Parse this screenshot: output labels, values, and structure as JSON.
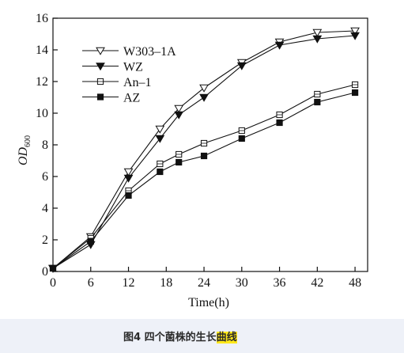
{
  "chart_data": {
    "type": "line",
    "x": [
      0,
      6,
      12,
      17,
      20,
      24,
      30,
      36,
      42,
      48
    ],
    "xticks": [
      0,
      6,
      12,
      18,
      24,
      30,
      36,
      42,
      48
    ],
    "yticks": [
      0,
      2,
      4,
      6,
      8,
      10,
      12,
      14,
      16
    ],
    "xlim": [
      0,
      50
    ],
    "ylim": [
      0,
      16
    ],
    "xlabel": "Time(h)",
    "ylabel_main": "OD",
    "ylabel_sub": "600",
    "grid": false,
    "legend_position": "top-left",
    "series": [
      {
        "name": "W303–1A",
        "marker": "triangle-down-open",
        "values": [
          0.2,
          2.2,
          6.3,
          9.0,
          10.3,
          11.6,
          13.2,
          14.5,
          15.1,
          15.2
        ]
      },
      {
        "name": "WZ",
        "marker": "triangle-down-filled",
        "values": [
          0.2,
          1.7,
          5.9,
          8.4,
          9.9,
          11.0,
          13.0,
          14.3,
          14.7,
          14.9
        ]
      },
      {
        "name": "An–1",
        "marker": "square-open",
        "values": [
          0.2,
          2.1,
          5.1,
          6.8,
          7.4,
          8.1,
          8.9,
          9.9,
          11.2,
          11.8
        ]
      },
      {
        "name": "AZ",
        "marker": "square-filled",
        "values": [
          0.2,
          1.9,
          4.8,
          6.3,
          6.9,
          7.3,
          8.4,
          9.4,
          10.7,
          11.3
        ]
      }
    ]
  },
  "caption": {
    "prefix": "图4 四个菌株的生长",
    "highlight": "曲线"
  }
}
